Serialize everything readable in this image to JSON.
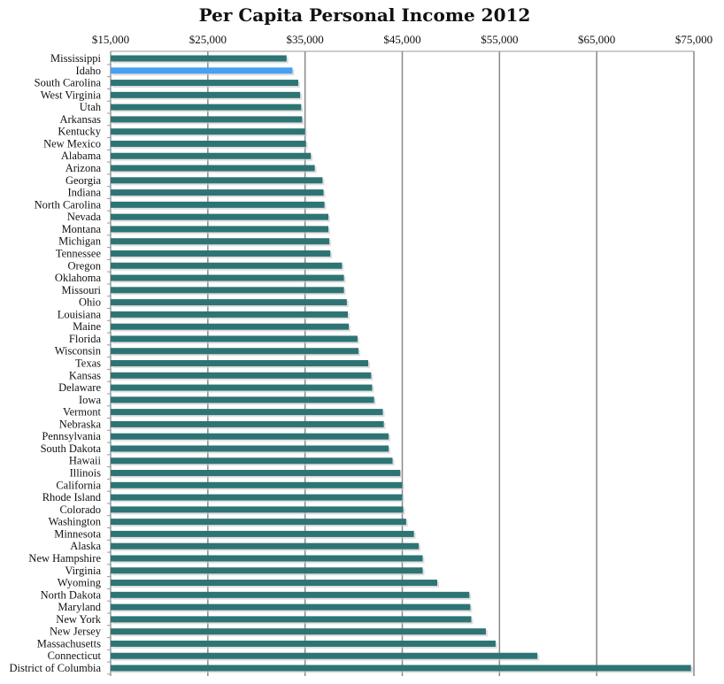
{
  "chart_data": {
    "type": "bar",
    "orientation": "horizontal",
    "title": "Per Capita Personal Income 2012",
    "xlabel": "",
    "ylabel": "",
    "xlim": [
      15000,
      75000
    ],
    "x_ticks": [
      15000,
      25000,
      35000,
      45000,
      55000,
      65000,
      75000
    ],
    "x_tick_labels": [
      "$15,000",
      "$25,000",
      "$35,000",
      "$45,000",
      "$55,000",
      "$65,000",
      "$75,000"
    ],
    "axis_position": "top",
    "grid": true,
    "colors": {
      "bar": "#2e7474",
      "highlight": "#4a9ff0",
      "grid": "#888888"
    },
    "highlight": "Idaho",
    "categories": [
      "Mississippi",
      "Idaho",
      "South Carolina",
      "West Virginia",
      "Utah",
      "Arkansas",
      "Kentucky",
      "New Mexico",
      "Alabama",
      "Arizona",
      "Georgia",
      "Indiana",
      "North Carolina",
      "Nevada",
      "Montana",
      "Michigan",
      "Tennessee",
      "Oregon",
      "Oklahoma",
      "Missouri",
      "Ohio",
      "Louisiana",
      "Maine",
      "Florida",
      "Wisconsin",
      "Texas",
      "Kansas",
      "Delaware",
      "Iowa",
      "Vermont",
      "Nebraska",
      "Pennsylvania",
      "South Dakota",
      "Hawaii",
      "Illinois",
      "California",
      "Rhode Island",
      "Colorado",
      "Washington",
      "Minnesota",
      "Alaska",
      "New Hampshire",
      "Virginia",
      "Wyoming",
      "North Dakota",
      "Maryland",
      "New York",
      "New Jersey",
      "Massachusetts",
      "Connecticut",
      "District of Columbia"
    ],
    "values": [
      33100,
      33700,
      34300,
      34500,
      34600,
      34700,
      35000,
      35100,
      35600,
      36000,
      36800,
      36900,
      37000,
      37400,
      37400,
      37500,
      37600,
      38800,
      39000,
      39000,
      39300,
      39400,
      39500,
      40400,
      40500,
      41500,
      41800,
      41900,
      42100,
      43000,
      43100,
      43600,
      43600,
      44000,
      44800,
      45000,
      45000,
      45100,
      45400,
      46200,
      46700,
      47100,
      47100,
      48600,
      51900,
      52000,
      52100,
      53600,
      54600,
      58900,
      74700
    ]
  }
}
